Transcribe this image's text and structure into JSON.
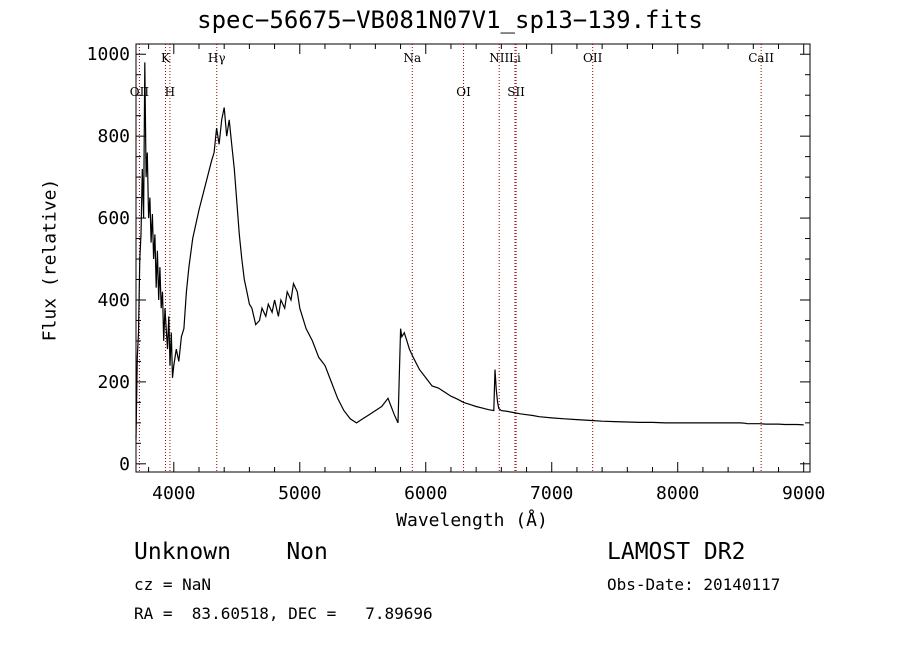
{
  "chart_data": {
    "type": "line",
    "title": "spec−56675−VB081N07V1_sp13−139.fits",
    "xlabel": "Wavelength (Å)",
    "ylabel": "Flux (relative)",
    "xlim": [
      3700,
      9050
    ],
    "ylim": [
      -20,
      1025
    ],
    "xticks": [
      4000,
      5000,
      6000,
      7000,
      8000,
      9000
    ],
    "yticks": [
      0,
      200,
      400,
      600,
      800,
      1000
    ],
    "grid": false,
    "series": [
      {
        "x": [
          3700,
          3710,
          3720,
          3730,
          3740,
          3750,
          3760,
          3770,
          3780,
          3790,
          3800,
          3810,
          3820,
          3830,
          3840,
          3850,
          3860,
          3870,
          3880,
          3890,
          3900,
          3910,
          3920,
          3930,
          3940,
          3950,
          3960,
          3970,
          3980,
          3990,
          4000,
          4020,
          4040,
          4060,
          4080,
          4100,
          4120,
          4150,
          4200,
          4250,
          4300,
          4320,
          4340,
          4360,
          4380,
          4400,
          4420,
          4440,
          4460,
          4480,
          4500,
          4520,
          4540,
          4560,
          4580,
          4600,
          4620,
          4650,
          4680,
          4700,
          4730,
          4750,
          4780,
          4800,
          4830,
          4850,
          4880,
          4900,
          4930,
          4950,
          4980,
          5000,
          5050,
          5100,
          5150,
          5200,
          5250,
          5300,
          5350,
          5400,
          5450,
          5500,
          5550,
          5600,
          5650,
          5700,
          5750,
          5780,
          5800,
          5810,
          5830,
          5850,
          5870,
          5900,
          5950,
          6000,
          6050,
          6100,
          6150,
          6200,
          6250,
          6300,
          6350,
          6400,
          6450,
          6500,
          6540,
          6550,
          6560,
          6570,
          6580,
          6600,
          6650,
          6700,
          6750,
          6800,
          6850,
          6900,
          7000,
          7100,
          7200,
          7300,
          7400,
          7500,
          7600,
          7700,
          7800,
          7900,
          8000,
          8100,
          8200,
          8300,
          8400,
          8500,
          8540,
          8550,
          8600,
          8650,
          8700,
          8750,
          8800,
          8850,
          8900,
          8950,
          9000
        ],
        "y": [
          60,
          260,
          320,
          500,
          560,
          720,
          600,
          980,
          700,
          760,
          600,
          650,
          540,
          610,
          500,
          560,
          430,
          520,
          400,
          480,
          380,
          420,
          300,
          380,
          330,
          280,
          360,
          240,
          320,
          210,
          240,
          280,
          250,
          310,
          330,
          420,
          480,
          550,
          620,
          680,
          740,
          760,
          820,
          780,
          840,
          870,
          800,
          840,
          780,
          720,
          640,
          560,
          500,
          450,
          420,
          390,
          380,
          340,
          350,
          380,
          360,
          390,
          370,
          400,
          360,
          400,
          380,
          420,
          400,
          440,
          420,
          380,
          330,
          300,
          260,
          240,
          200,
          160,
          130,
          110,
          100,
          110,
          120,
          130,
          140,
          160,
          120,
          100,
          330,
          310,
          320,
          300,
          280,
          260,
          230,
          210,
          190,
          185,
          175,
          165,
          158,
          150,
          145,
          140,
          136,
          132,
          130,
          230,
          180,
          150,
          135,
          130,
          128,
          125,
          122,
          120,
          118,
          115,
          112,
          110,
          108,
          106,
          104,
          103,
          102,
          101,
          101,
          100,
          100,
          100,
          100,
          100,
          100,
          100,
          99,
          98,
          98,
          98,
          97,
          97,
          97,
          96,
          96,
          96,
          95
        ]
      }
    ],
    "lines": [
      {
        "label": "OII",
        "x": 3727,
        "row": 2
      },
      {
        "label": "K",
        "x": 3934,
        "row": 1
      },
      {
        "label": "H",
        "x": 3969,
        "row": 2
      },
      {
        "label": "Hγ",
        "x": 4341,
        "row": 1
      },
      {
        "label": "Na",
        "x": 5893,
        "row": 1
      },
      {
        "label": "OI",
        "x": 6300,
        "row": 2
      },
      {
        "label": "NII",
        "x": 6583,
        "row": 1
      },
      {
        "label": "Li",
        "x": 6708,
        "row": 1
      },
      {
        "label": "SII",
        "x": 6717,
        "row": 2
      },
      {
        "label": "OII",
        "x": 7325,
        "row": 1
      },
      {
        "label": "CaII",
        "x": 8662,
        "row": 1
      }
    ],
    "colors": {
      "axes": "#000000",
      "spectrum": "#000000",
      "line_markers": "#990000"
    }
  },
  "info": {
    "class_subclass": "Unknown    Non",
    "survey": "LAMOST DR2",
    "cz": "cz = NaN",
    "obs_date": "Obs-Date: 20140117",
    "radec": "RA =  83.60518, DEC =   7.89696"
  }
}
